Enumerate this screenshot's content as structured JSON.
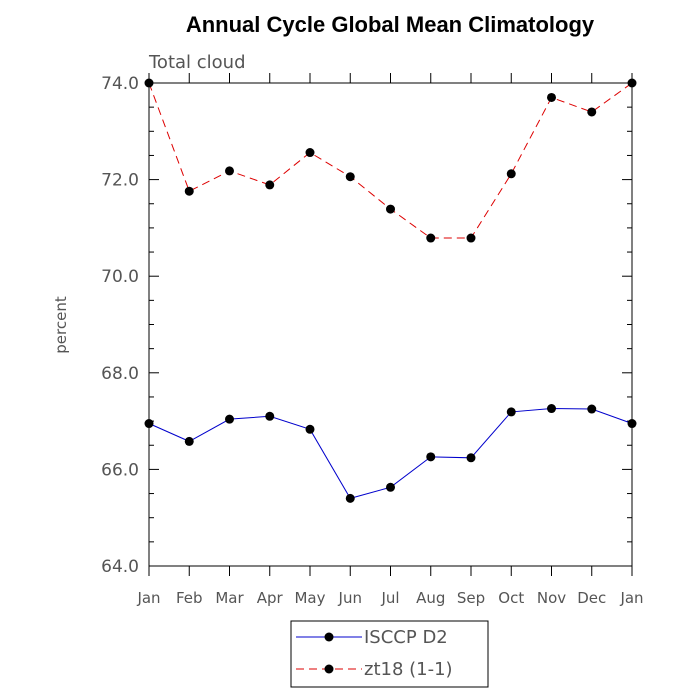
{
  "chart_data": {
    "type": "line",
    "title": "Annual Cycle Global Mean Climatology",
    "subtitle": "Total cloud",
    "ylabel": "percent",
    "xlabel": "",
    "categories": [
      "Jan",
      "Feb",
      "Mar",
      "Apr",
      "May",
      "Jun",
      "Jul",
      "Aug",
      "Sep",
      "Oct",
      "Nov",
      "Dec",
      "Jan"
    ],
    "ylim": [
      64.0,
      74.0
    ],
    "yticks": [
      "64.0",
      "66.0",
      "68.0",
      "70.0",
      "72.0",
      "74.0"
    ],
    "series": [
      {
        "name": "ISCCP D2",
        "color": "#0000cc",
        "dash": "solid",
        "marker": "filled-circle",
        "values": [
          66.95,
          66.58,
          67.04,
          67.1,
          66.83,
          65.4,
          65.63,
          66.26,
          66.24,
          67.19,
          67.26,
          67.25,
          66.95
        ]
      },
      {
        "name": "zt18 (1-1)",
        "color": "#dd0000",
        "dash": "dashed",
        "marker": "filled-circle",
        "values": [
          74.0,
          71.76,
          72.18,
          71.89,
          72.56,
          72.06,
          71.39,
          70.79,
          70.79,
          72.12,
          73.7,
          73.4,
          74.0
        ]
      }
    ],
    "legend": {
      "placement": "bottom-center"
    },
    "grid": false
  }
}
